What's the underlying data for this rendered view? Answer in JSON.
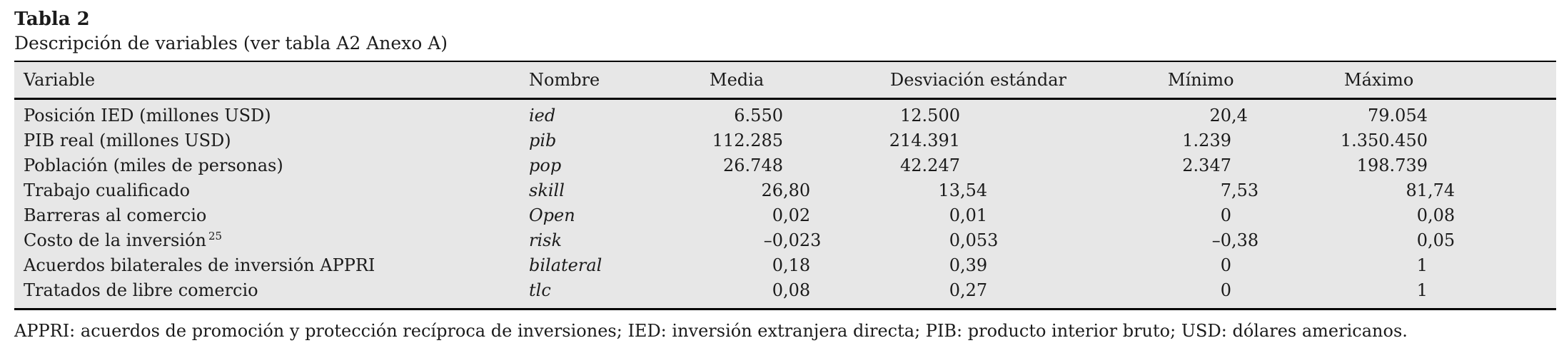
{
  "title": "Tabla 2",
  "subtitle": "Descripción de variables (ver tabla A2 Anexo A)",
  "table": {
    "columns": [
      "Variable",
      "Nombre",
      "Media",
      "Desviación estándar",
      "Mínimo",
      "Máximo"
    ],
    "rows": [
      {
        "variable": "Posición IED (millones USD)",
        "nombre": "ied",
        "media": "6.550",
        "desviacion": "12.500",
        "minimo": "20,4",
        "maximo": "79.054"
      },
      {
        "variable": "PIB real (millones USD)",
        "nombre": "pib",
        "media": "112.285",
        "desviacion": "214.391",
        "minimo": "1.239",
        "maximo": "1.350.450"
      },
      {
        "variable": "Población (miles de personas)",
        "nombre": "pop",
        "media": "26.748",
        "desviacion": "42.247",
        "minimo": "2.347",
        "maximo": "198.739"
      },
      {
        "variable": "Trabajo cualificado",
        "nombre": "skill",
        "media": "26,80",
        "desviacion": "13,54",
        "minimo": "7,53",
        "maximo": "81,74"
      },
      {
        "variable": "Barreras al comercio",
        "nombre": "Open",
        "media": "0,02",
        "desviacion": "0,01",
        "minimo": "0",
        "maximo": "0,08"
      },
      {
        "variable": "Costo de la inversión",
        "sup": "25",
        "nombre": "risk",
        "media": "–0,023",
        "desviacion": "0,053",
        "minimo": "–0,38",
        "maximo": "0,05"
      },
      {
        "variable": "Acuerdos bilaterales de inversión APPRI",
        "nombre": "bilateral",
        "media": "0,18",
        "desviacion": "0,39",
        "minimo": "0",
        "maximo": "1"
      },
      {
        "variable": "Tratados de libre comercio",
        "nombre": "tlc",
        "media": "0,08",
        "desviacion": "0,27",
        "minimo": "0",
        "maximo": "1"
      }
    ]
  },
  "footnote": "APPRI: acuerdos de promoción y protección recíproca de inversiones; IED: inversión extranjera directa; PIB: producto interior bruto; USD: dólares americanos.",
  "colors": {
    "page_bg": "#ffffff",
    "table_bg": "#e7e7e7",
    "rule": "#000000",
    "text": "#1b1b1b"
  }
}
